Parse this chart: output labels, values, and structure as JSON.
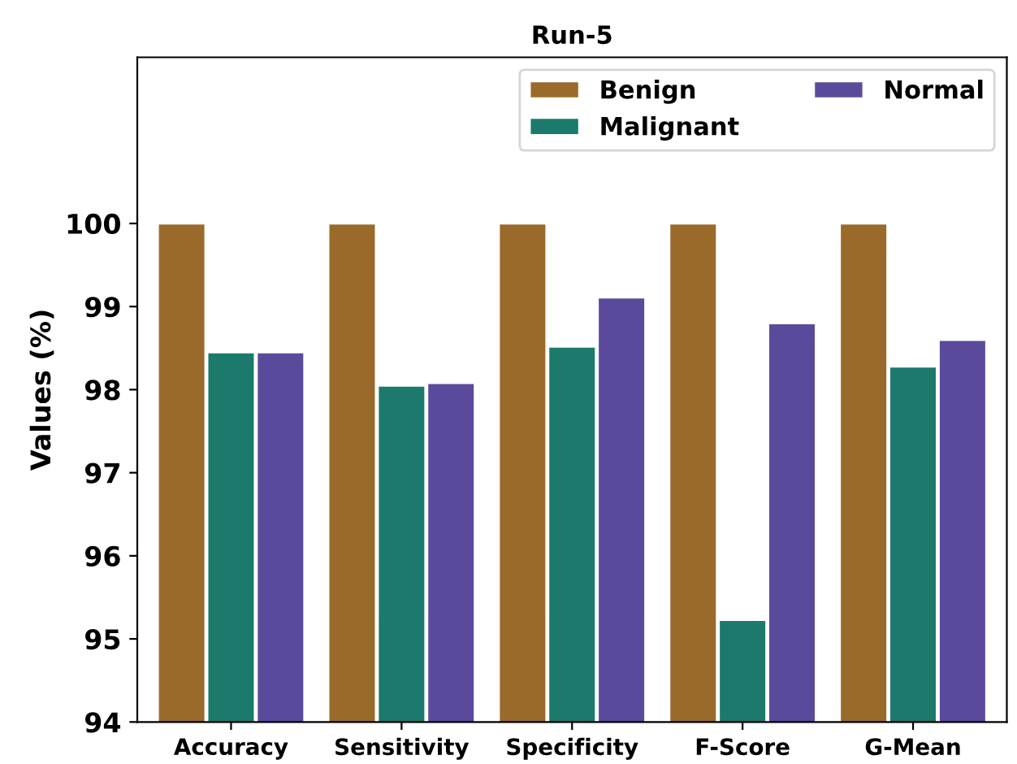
{
  "chart_data": {
    "type": "bar",
    "title": "Run-5",
    "ylabel": "Values (%)",
    "categories": [
      "Accuracy",
      "Sensitivity",
      "Specificity",
      "F-Score",
      "G-Mean"
    ],
    "series": [
      {
        "name": "Benign",
        "color": "#996a2a",
        "values": [
          100,
          100,
          100,
          100,
          100
        ]
      },
      {
        "name": "Malignant",
        "color": "#1b7a6b",
        "values": [
          98.45,
          98.05,
          98.52,
          95.23,
          98.28
        ]
      },
      {
        "name": "Normal",
        "color": "#5b4a9c",
        "values": [
          98.45,
          98.08,
          99.11,
          98.8,
          98.6
        ]
      }
    ],
    "ylim": [
      94,
      102
    ],
    "yticks": [
      94,
      95,
      96,
      97,
      98,
      99,
      100
    ],
    "grid": false,
    "legend": "top right"
  }
}
